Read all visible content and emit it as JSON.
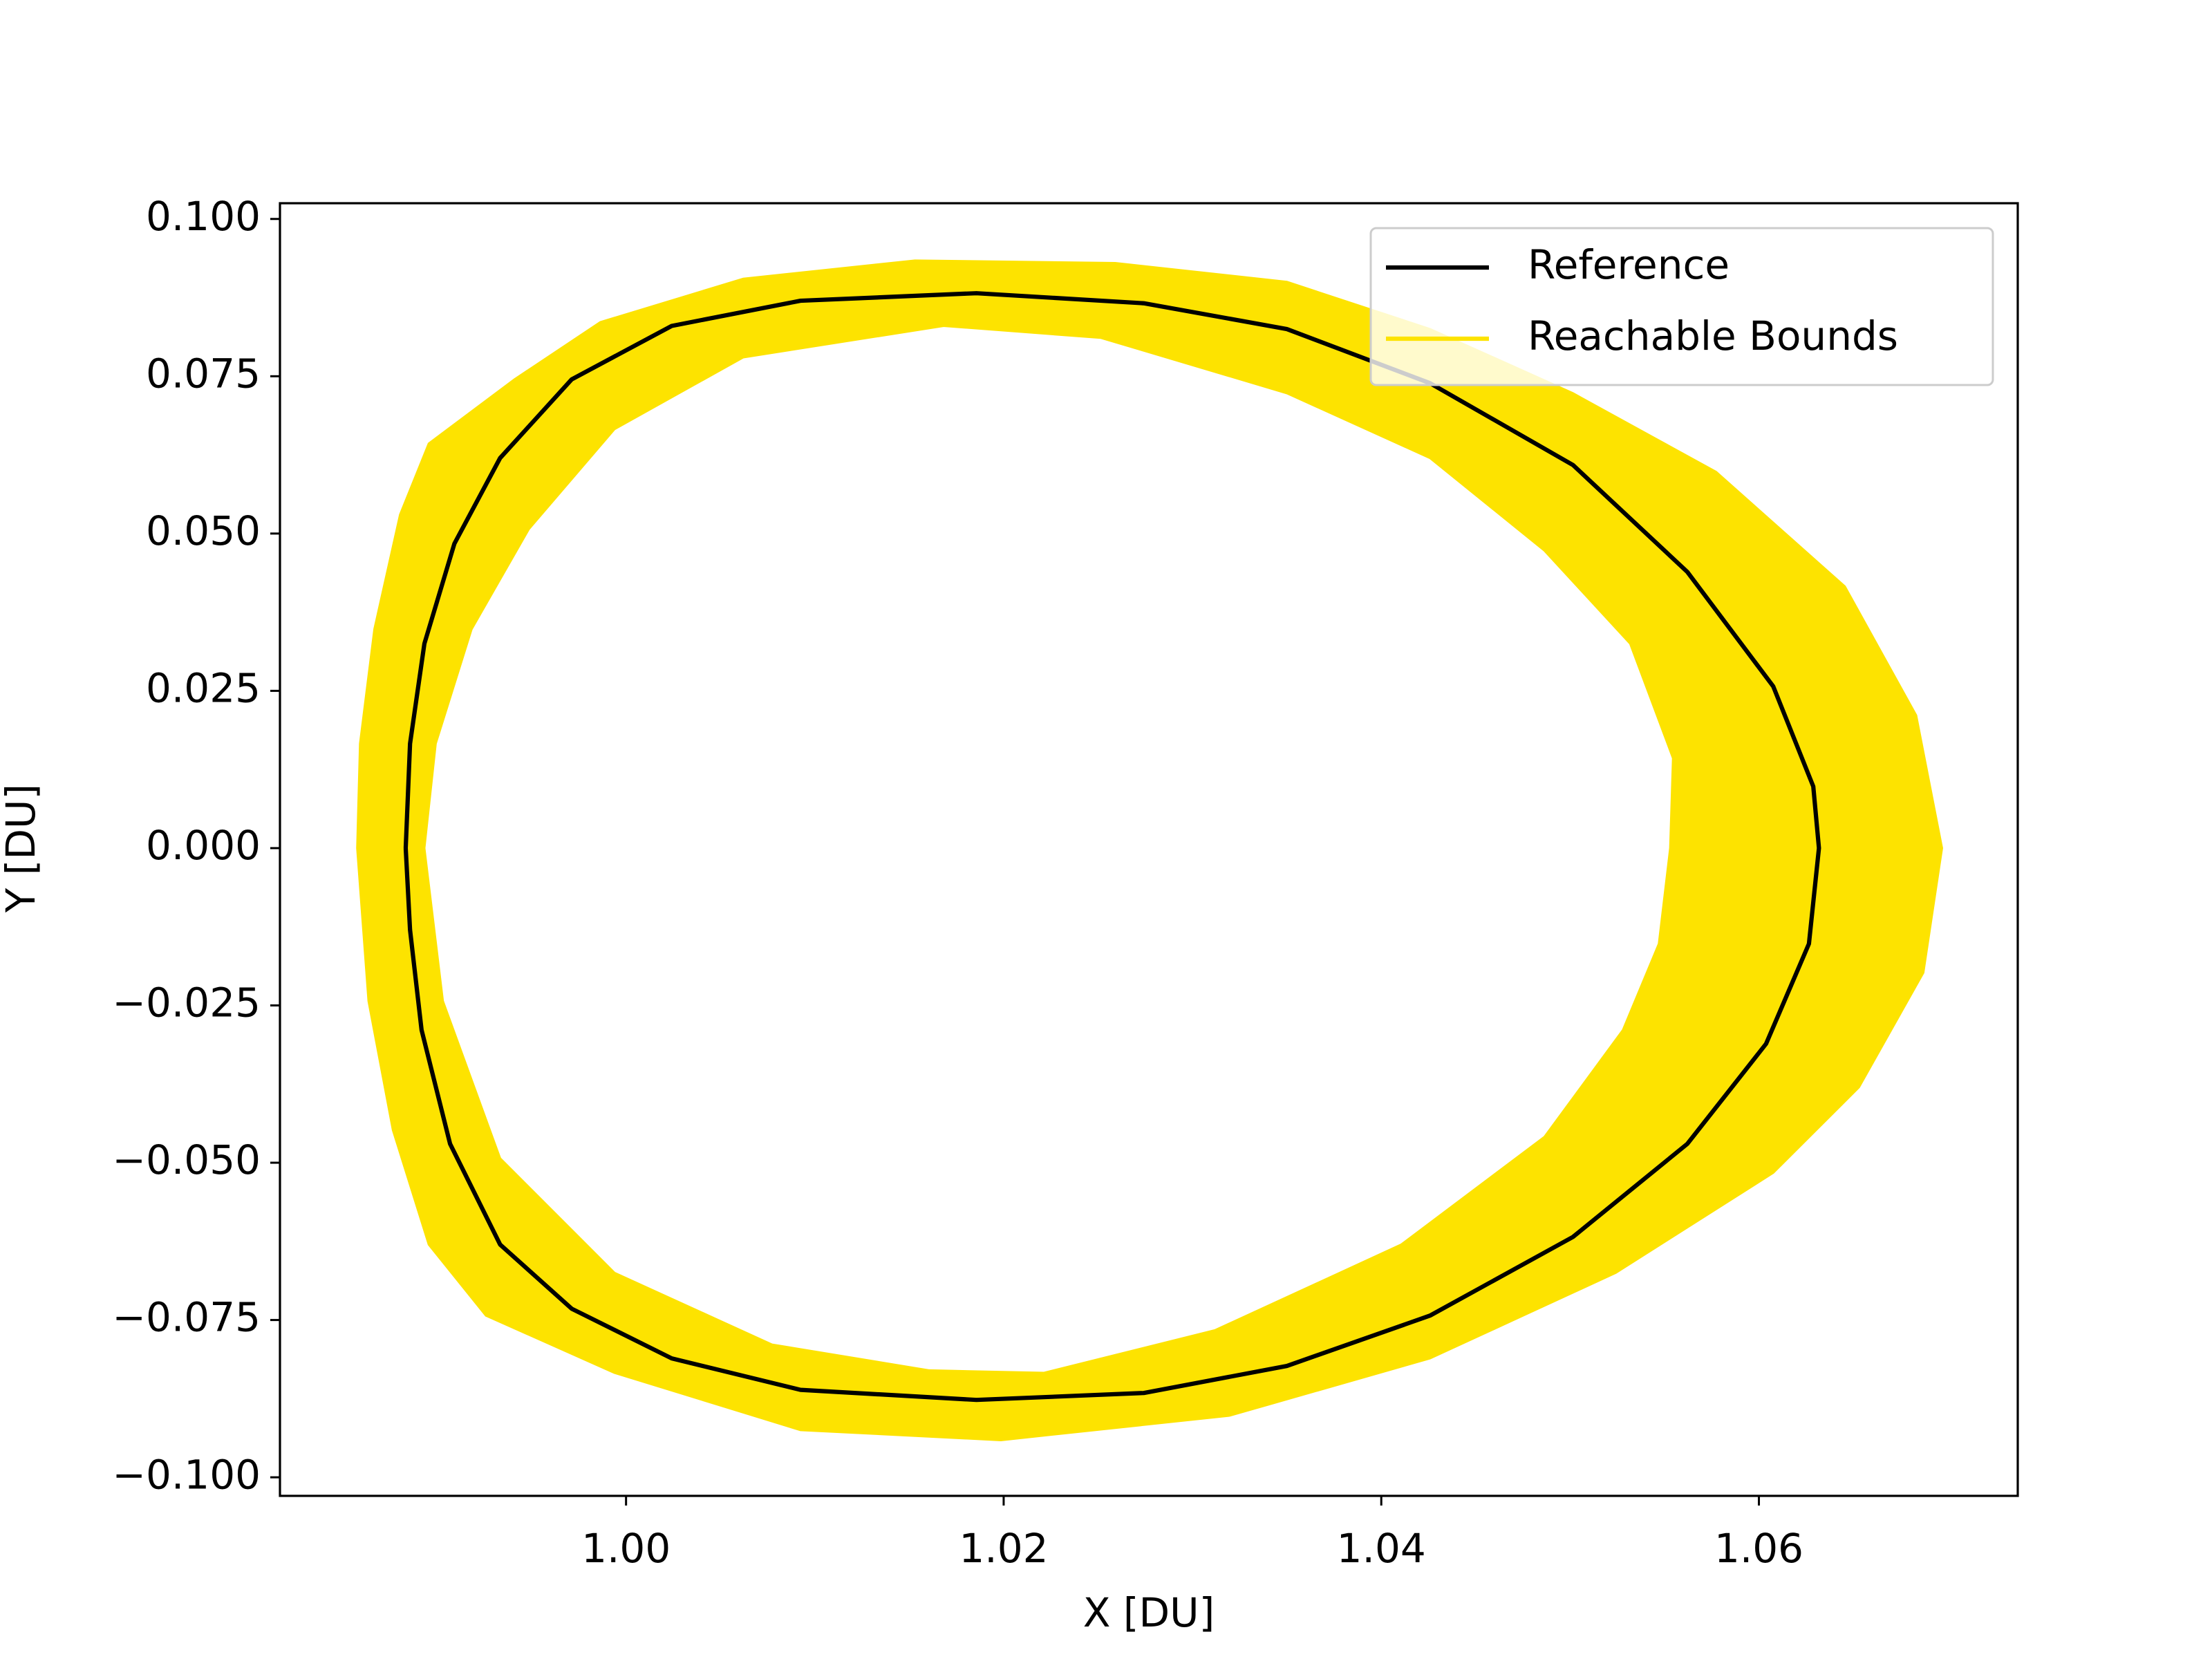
{
  "chart_data": {
    "type": "line",
    "x_label": "X [DU]",
    "y_label": "Y [DU]",
    "xlim": [
      0.98167,
      1.07371
    ],
    "ylim": [
      -0.10295,
      0.1025
    ],
    "xticks": [
      {
        "value": 1.0,
        "label": "1.00"
      },
      {
        "value": 1.02,
        "label": "1.02"
      },
      {
        "value": 1.04,
        "label": "1.04"
      },
      {
        "value": 1.06,
        "label": "1.06"
      }
    ],
    "yticks": [
      {
        "value": -0.1,
        "label": "−0.100"
      },
      {
        "value": -0.075,
        "label": "−0.075"
      },
      {
        "value": -0.05,
        "label": "−0.050"
      },
      {
        "value": -0.025,
        "label": "−0.025"
      },
      {
        "value": 0,
        "label": "0.000"
      },
      {
        "value": 0.025,
        "label": "0.025"
      },
      {
        "value": 0.05,
        "label": "0.050"
      },
      {
        "value": 0.075,
        "label": "0.075"
      },
      {
        "value": 0.1,
        "label": "0.100"
      }
    ],
    "legend": "upper right",
    "series": [
      {
        "name": "Reachable Bounds",
        "color": "#fde300",
        "style": "fill",
        "x": [
          0.98576,
          0.98591,
          0.98667,
          0.98803,
          0.98955,
          0.99409,
          0.99864,
          1.00621,
          1.0153,
          1.02591,
          1.035,
          1.04258,
          1.05015,
          1.05773,
          1.06455,
          1.06833,
          1.0697,
          1.06871,
          1.0653,
          1.06076,
          1.05242,
          1.04258,
          1.03197,
          1.01985,
          1.00924,
          0.99939,
          0.99258,
          0.98955,
          0.98765,
          0.98636,
          null,
          0.98932,
          0.98992,
          0.99182,
          0.99485,
          0.99939,
          1.00621,
          1.01682,
          1.02515,
          1.035,
          1.04258,
          1.04864,
          1.05318,
          1.05545,
          1.0553,
          1.0547,
          1.0528,
          1.04864,
          1.04106,
          1.03121,
          1.02212,
          1.01606,
          1.00773,
          0.99939,
          0.99333,
          0.9903
        ],
        "values": [
          0,
          0.0166,
          0.0348,
          0.053,
          0.0643,
          0.0745,
          0.0836,
          0.0905,
          0.0934,
          0.093,
          0.09,
          0.0825,
          0.0723,
          0.0598,
          0.0416,
          0.0211,
          0,
          -0.0198,
          -0.038,
          -0.0516,
          -0.0675,
          -0.0811,
          -0.0902,
          -0.0941,
          -0.0925,
          -0.0834,
          -0.0743,
          -0.063,
          -0.0448,
          -0.0243,
          null,
          0,
          0.0166,
          0.0348,
          0.0507,
          0.0666,
          0.078,
          0.083,
          0.0811,
          0.0723,
          0.062,
          0.0473,
          0.0325,
          0.0143,
          0,
          -0.0152,
          -0.0289,
          -0.0459,
          -0.063,
          -0.0766,
          -0.0834,
          -0.083,
          -0.0789,
          -0.0675,
          -0.0493,
          -0.0243
        ]
      },
      {
        "name": "Reference",
        "color": "#000000",
        "style": "line",
        "x": [
          0.98833,
          0.98856,
          0.98932,
          0.99091,
          0.99333,
          0.99712,
          1.00242,
          1.00924,
          1.01856,
          1.02742,
          1.035,
          1.04258,
          1.05015,
          1.05621,
          1.06076,
          1.06288,
          1.06318,
          1.06265,
          1.06038,
          1.05621,
          1.05015,
          1.04258,
          1.035,
          1.02742,
          1.01856,
          1.00924,
          1.00242,
          0.99712,
          0.99333,
          0.99068,
          0.98917,
          0.98856,
          0.98833
        ],
        "values": [
          0,
          0.0166,
          0.0325,
          0.0484,
          0.062,
          0.0745,
          0.083,
          0.087,
          0.0882,
          0.0866,
          0.0825,
          0.0739,
          0.0609,
          0.0439,
          0.0257,
          0.0098,
          0,
          -0.0152,
          -0.0311,
          -0.047,
          -0.0618,
          -0.0743,
          -0.0823,
          -0.0866,
          -0.0877,
          -0.0861,
          -0.0811,
          -0.0732,
          -0.063,
          -0.047,
          -0.0289,
          -0.013,
          0
        ]
      }
    ]
  }
}
